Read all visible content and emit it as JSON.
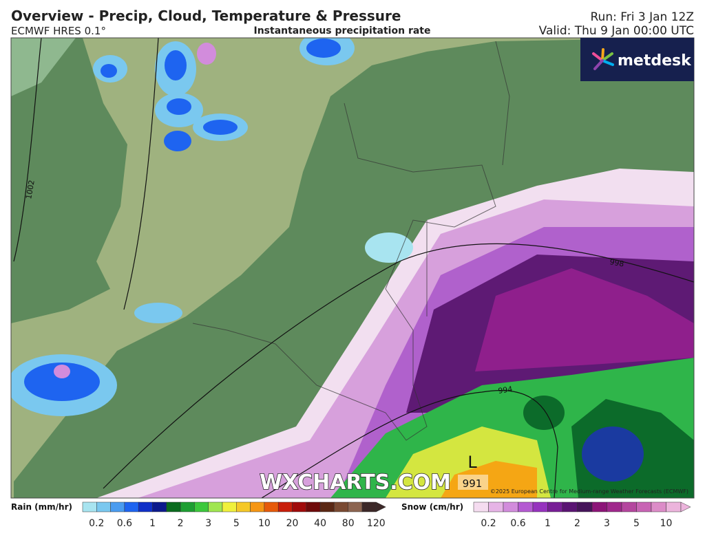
{
  "header": {
    "title": "Overview - Precip, Cloud, Temperature & Pressure",
    "model": "ECMWF HRES 0.1°",
    "product": "Instantaneous precipitation rate",
    "run": "Run: Fri 3 Jan 12Z",
    "valid": "Valid: Thu 9 Jan 00:00 UTC"
  },
  "logo": "metdesk",
  "map": {
    "isobars": [
      1002,
      998,
      994
    ],
    "low": {
      "symbol": "L",
      "pressure": 991
    },
    "watermark": "WXCHARTS.COM",
    "credit": "©2025 European Centre for Medium-range Weather Forecasts (ECMWF)"
  },
  "legend": {
    "rain": {
      "label": "Rain (mm/hr)",
      "ticks": [
        0.2,
        0.6,
        1,
        2,
        3,
        5,
        10,
        20,
        40,
        80,
        120
      ],
      "colors": [
        "#a8e4f0",
        "#7ac8ef",
        "#4a9cf0",
        "#1e64f0",
        "#1030c8",
        "#0c1a8c",
        "#0a6b1e",
        "#1e9e32",
        "#3cc83c",
        "#a0e650",
        "#f0f03c",
        "#f5c828",
        "#f59614",
        "#e65a0a",
        "#c81e0a",
        "#a00a0a",
        "#6e0a0a",
        "#5a2814",
        "#7a4a32",
        "#8c6450",
        "#3c2828"
      ]
    },
    "snow": {
      "label": "Snow (cm/hr)",
      "ticks": [
        0.2,
        0.6,
        1,
        2,
        3,
        5,
        10
      ],
      "colors": [
        "#f5dcf0",
        "#e6b4e6",
        "#d28cdc",
        "#b45ad2",
        "#9632be",
        "#781e96",
        "#5a1473",
        "#46145a",
        "#8c1478",
        "#a0288c",
        "#b4469e",
        "#c864b4",
        "#dc8cc8",
        "#ecb4dc"
      ]
    }
  }
}
